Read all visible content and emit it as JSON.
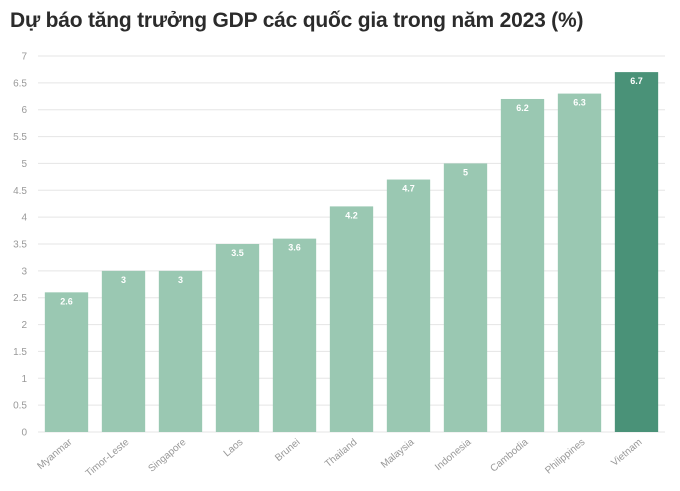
{
  "title": "Dự báo tăng trưởng GDP các quốc gia trong năm 2023 (%)",
  "chart_data": {
    "type": "bar",
    "title": "Dự báo tăng trưởng GDP các quốc gia trong năm 2023 (%)",
    "categories": [
      "Myanmar",
      "Timor-Leste",
      "Singapore",
      "Laos",
      "Brunei",
      "Thailand",
      "Malaysia",
      "Indonesia",
      "Cambodia",
      "Philippines",
      "Vietnam"
    ],
    "values": [
      2.6,
      3,
      3,
      3.5,
      3.6,
      4.2,
      4.7,
      5,
      6.2,
      6.3,
      6.7
    ],
    "data_labels": [
      "2.6",
      "3",
      "3",
      "3.5",
      "3.6",
      "4.2",
      "4.7",
      "5",
      "6.2",
      "6.3",
      "6.7"
    ],
    "y_ticks": [
      "0",
      "0.5",
      "1",
      "1.5",
      "2",
      "2.5",
      "3",
      "3.5",
      "4",
      "4.5",
      "5",
      "5.5",
      "6",
      "6.5",
      "7"
    ],
    "ylim": [
      0,
      7
    ],
    "grid": true,
    "colors": {
      "bar": "#9ac8b2",
      "highlight": "#4a9278",
      "grid": "#e5e5e5",
      "tick_text": "#999999",
      "label_text": "#ffffff"
    },
    "highlight_category": "Vietnam"
  }
}
